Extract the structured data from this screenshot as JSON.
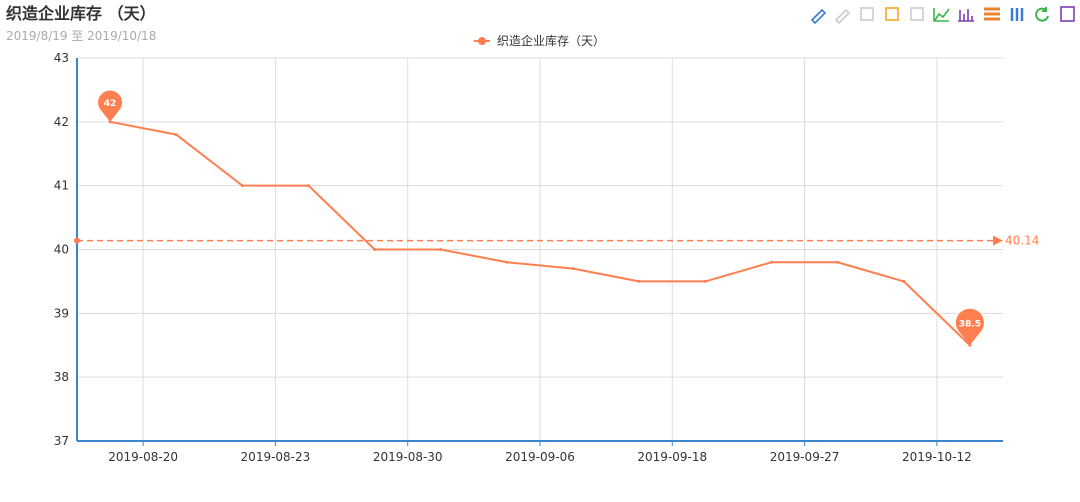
{
  "chart_data": {
    "type": "line",
    "title": "织造企业库存 （天）",
    "subtitle": "2019/8/19 至 2019/10/18",
    "categories": [
      "2019-08-20",
      null,
      "2019-08-23",
      null,
      "2019-08-30",
      null,
      "2019-09-06",
      null,
      "2019-09-18",
      null,
      "2019-09-27",
      null,
      "2019-10-12",
      null
    ],
    "series": [
      {
        "name": "织造企业库存（天）",
        "color": "#ff7f50",
        "values": [
          42,
          41.8,
          41,
          41,
          40,
          40,
          39.8,
          39.7,
          39.5,
          39.5,
          39.8,
          39.8,
          39.5,
          38.5
        ]
      }
    ],
    "max_point": 42,
    "min_point": 38.5,
    "average_line": 40.14,
    "ylim": [
      37,
      43
    ],
    "yticks": [
      37,
      38,
      39,
      40,
      41,
      42,
      43
    ],
    "grid": true,
    "legend": "top"
  }
}
